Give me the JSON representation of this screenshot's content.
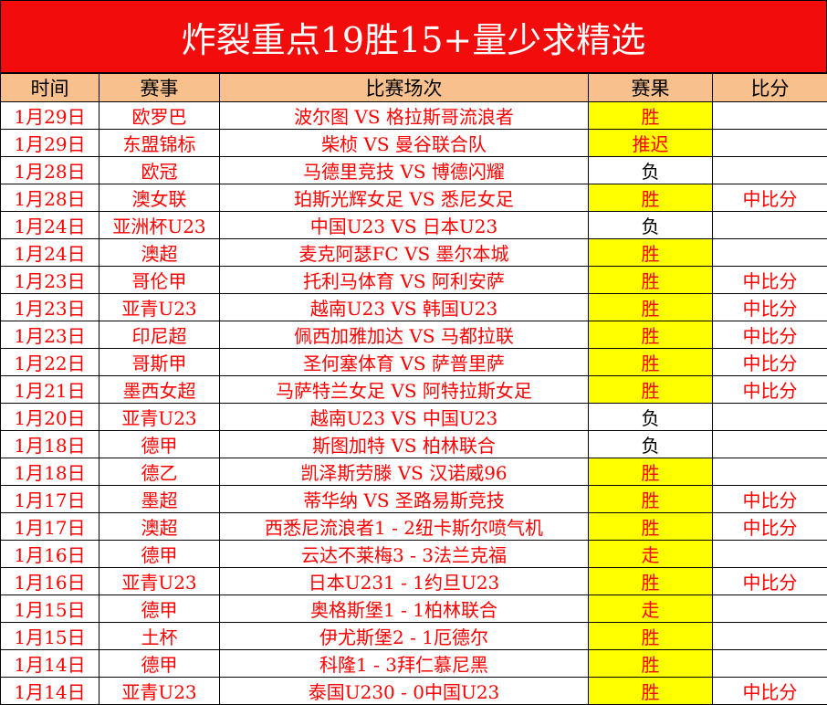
{
  "title": "炸裂重点19胜15+量少求精选",
  "headers": [
    "时间",
    "赛事",
    "比赛场次",
    "赛果",
    "比分"
  ],
  "colors": {
    "title_bg": "#f20c0c",
    "header_bg": "#f8c08c",
    "text": "#ff0000",
    "highlight": "#ffff00"
  },
  "rows": [
    {
      "date": "1月29日",
      "league": "欧罗巴",
      "match": "波尔图 VS 格拉斯哥流浪者",
      "result": "胜",
      "score": ""
    },
    {
      "date": "1月29日",
      "league": "东盟锦标",
      "match": "柴桢 VS 曼谷联合队",
      "result": "推迟",
      "score": ""
    },
    {
      "date": "1月28日",
      "league": "欧冠",
      "match": "马德里竞技 VS 博德闪耀",
      "result": "负",
      "score": ""
    },
    {
      "date": "1月28日",
      "league": "澳女联",
      "match": "珀斯光辉女足 VS 悉尼女足",
      "result": "胜",
      "score": "中比分"
    },
    {
      "date": "1月24日",
      "league": "亚洲杯U23",
      "match": "中国U23 VS 日本U23",
      "result": "负",
      "score": ""
    },
    {
      "date": "1月24日",
      "league": "澳超",
      "match": "麦克阿瑟FC VS 墨尔本城",
      "result": "胜",
      "score": ""
    },
    {
      "date": "1月23日",
      "league": "哥伦甲",
      "match": "托利马体育 VS 阿利安萨",
      "result": "胜",
      "score": "中比分"
    },
    {
      "date": "1月23日",
      "league": "亚青U23",
      "match": "越南U23 VS 韩国U23",
      "result": "胜",
      "score": "中比分"
    },
    {
      "date": "1月23日",
      "league": "印尼超",
      "match": "佩西加雅加达 VS 马都拉联",
      "result": "胜",
      "score": "中比分"
    },
    {
      "date": "1月22日",
      "league": "哥斯甲",
      "match": "圣何塞体育 VS 萨普里萨",
      "result": "胜",
      "score": "中比分"
    },
    {
      "date": "1月21日",
      "league": "墨西女超",
      "match": "马萨特兰女足 VS 阿特拉斯女足",
      "result": "胜",
      "score": "中比分"
    },
    {
      "date": "1月20日",
      "league": "亚青U23",
      "match": "越南U23 VS 中国U23",
      "result": "负",
      "score": ""
    },
    {
      "date": "1月18日",
      "league": "德甲",
      "match": "斯图加特 VS 柏林联合",
      "result": "负",
      "score": ""
    },
    {
      "date": "1月18日",
      "league": "德乙",
      "match": "凯泽斯劳滕 VS 汉诺威96",
      "result": "胜",
      "score": ""
    },
    {
      "date": "1月17日",
      "league": "墨超",
      "match": "蒂华纳 VS 圣路易斯竞技",
      "result": "胜",
      "score": "中比分"
    },
    {
      "date": "1月17日",
      "league": "澳超",
      "match": "西悉尼流浪者1 - 2纽卡斯尔喷气机",
      "result": "胜",
      "score": "中比分"
    },
    {
      "date": "1月16日",
      "league": "德甲",
      "match": "云达不莱梅3 - 3法兰克福",
      "result": "走",
      "score": ""
    },
    {
      "date": "1月16日",
      "league": "亚青U23",
      "match": "日本U231 - 1约旦U23",
      "result": "胜",
      "score": "中比分"
    },
    {
      "date": "1月15日",
      "league": "德甲",
      "match": "奥格斯堡1 - 1柏林联合",
      "result": "走",
      "score": ""
    },
    {
      "date": "1月15日",
      "league": "土杯",
      "match": "伊尤斯堡2 - 1厄德尔",
      "result": "胜",
      "score": ""
    },
    {
      "date": "1月14日",
      "league": "德甲",
      "match": "科隆1 - 3拜仁慕尼黑",
      "result": "胜",
      "score": ""
    },
    {
      "date": "1月14日",
      "league": "亚青U23",
      "match": "泰国U230 - 0中国U23",
      "result": "胜",
      "score": "中比分"
    }
  ]
}
